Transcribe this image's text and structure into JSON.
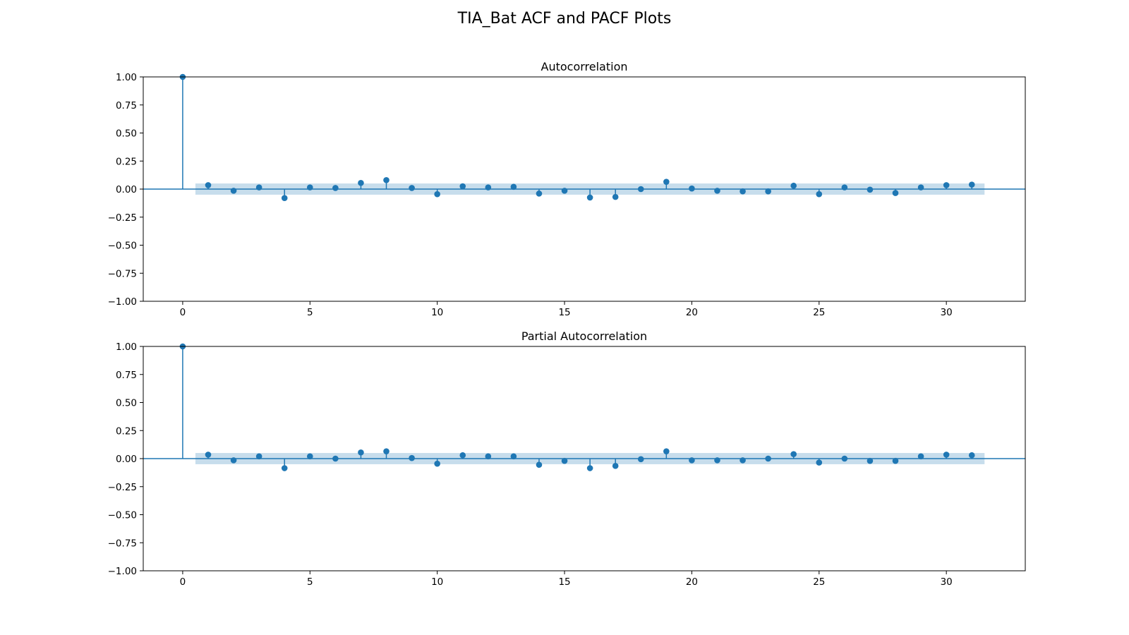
{
  "figure_title": "TIA_Bat ACF and PACF Plots",
  "colors": {
    "stem": "#1f77b4",
    "band": "#1f77b4",
    "axis": "#000000"
  },
  "chart_data": [
    {
      "type": "scatter",
      "subtype": "stem",
      "title": "Autocorrelation",
      "xlabel": "",
      "ylabel": "",
      "xlim": [
        -1.55,
        33.1
      ],
      "ylim": [
        -1.0,
        1.0
      ],
      "xticks": [
        0,
        5,
        10,
        15,
        20,
        25,
        30
      ],
      "yticks": [
        1.0,
        0.75,
        0.5,
        0.25,
        0.0,
        -0.25,
        -0.5,
        -0.75,
        -1.0
      ],
      "ytick_labels": [
        "1.00",
        "0.75",
        "0.50",
        "0.25",
        "0.00",
        "−0.25",
        "−0.50",
        "−0.75",
        "−1.00"
      ],
      "grid": false,
      "x": [
        0,
        1,
        2,
        3,
        4,
        5,
        6,
        7,
        8,
        9,
        10,
        11,
        12,
        13,
        14,
        15,
        16,
        17,
        18,
        19,
        20,
        21,
        22,
        23,
        24,
        25,
        26,
        27,
        28,
        29,
        30,
        31
      ],
      "values": [
        1.0,
        0.035,
        -0.015,
        0.015,
        -0.08,
        0.015,
        0.01,
        0.055,
        0.08,
        0.01,
        -0.045,
        0.025,
        0.015,
        0.02,
        -0.04,
        -0.015,
        -0.075,
        -0.07,
        0.0,
        0.065,
        0.005,
        -0.015,
        -0.02,
        -0.02,
        0.03,
        -0.045,
        0.015,
        -0.005,
        -0.035,
        0.015,
        0.035,
        0.04
      ],
      "confidence_band": {
        "x_range": [
          0.5,
          31.5
        ],
        "lower": -0.05,
        "upper": 0.05
      }
    },
    {
      "type": "scatter",
      "subtype": "stem",
      "title": "Partial Autocorrelation",
      "xlabel": "",
      "ylabel": "",
      "xlim": [
        -1.55,
        33.1
      ],
      "ylim": [
        -1.0,
        1.0
      ],
      "xticks": [
        0,
        5,
        10,
        15,
        20,
        25,
        30
      ],
      "yticks": [
        1.0,
        0.75,
        0.5,
        0.25,
        0.0,
        -0.25,
        -0.5,
        -0.75,
        -1.0
      ],
      "ytick_labels": [
        "1.00",
        "0.75",
        "0.50",
        "0.25",
        "0.00",
        "−0.25",
        "−0.50",
        "−0.75",
        "−1.00"
      ],
      "grid": false,
      "x": [
        0,
        1,
        2,
        3,
        4,
        5,
        6,
        7,
        8,
        9,
        10,
        11,
        12,
        13,
        14,
        15,
        16,
        17,
        18,
        19,
        20,
        21,
        22,
        23,
        24,
        25,
        26,
        27,
        28,
        29,
        30,
        31
      ],
      "values": [
        1.0,
        0.035,
        -0.015,
        0.02,
        -0.085,
        0.02,
        0.0,
        0.055,
        0.065,
        0.005,
        -0.045,
        0.03,
        0.02,
        0.02,
        -0.055,
        -0.02,
        -0.085,
        -0.065,
        -0.005,
        0.065,
        -0.015,
        -0.015,
        -0.015,
        0.0,
        0.04,
        -0.035,
        0.0,
        -0.02,
        -0.02,
        0.02,
        0.035,
        0.03
      ],
      "confidence_band": {
        "x_range": [
          0.5,
          31.5
        ],
        "lower": -0.05,
        "upper": 0.05
      }
    }
  ]
}
